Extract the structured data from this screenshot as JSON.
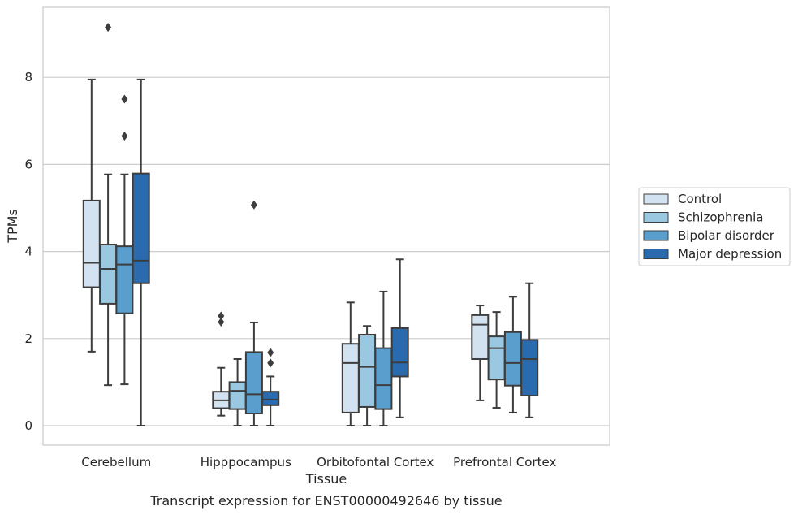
{
  "chart_data": {
    "type": "boxplot",
    "caption": "Transcript expression for ENST00000492646 by tissue",
    "xlabel": "Tissue",
    "ylabel": "TPMs",
    "ylim": [
      -0.45,
      9.6
    ],
    "yticks": [
      0,
      2,
      4,
      6,
      8
    ],
    "grid": true,
    "legend_position": "right",
    "categories": [
      "Cerebellum",
      "Hipppocampus",
      "Orbitofontal Cortex",
      "Prefrontal Cortex"
    ],
    "series": [
      {
        "name": "Control",
        "color": "#d2e2f1",
        "boxes": [
          {
            "whisker_low": 1.7,
            "q1": 3.18,
            "median": 3.74,
            "q3": 5.17,
            "whisker_high": 7.95,
            "outliers": []
          },
          {
            "whisker_low": 0.23,
            "q1": 0.4,
            "median": 0.58,
            "q3": 0.78,
            "whisker_high": 1.33,
            "outliers": [
              2.38,
              2.52
            ]
          },
          {
            "whisker_low": 0.0,
            "q1": 0.3,
            "median": 1.44,
            "q3": 1.88,
            "whisker_high": 2.83,
            "outliers": []
          },
          {
            "whisker_low": 0.58,
            "q1": 1.53,
            "median": 2.32,
            "q3": 2.54,
            "whisker_high": 2.76,
            "outliers": []
          }
        ]
      },
      {
        "name": "Schizophrenia",
        "color": "#9ac8e0",
        "boxes": [
          {
            "whisker_low": 0.93,
            "q1": 2.8,
            "median": 3.6,
            "q3": 4.16,
            "whisker_high": 5.77,
            "outliers": [
              9.15
            ]
          },
          {
            "whisker_low": 0.0,
            "q1": 0.38,
            "median": 0.8,
            "q3": 1.0,
            "whisker_high": 1.53,
            "outliers": []
          },
          {
            "whisker_low": 0.0,
            "q1": 0.43,
            "median": 1.35,
            "q3": 2.09,
            "whisker_high": 2.29,
            "outliers": []
          },
          {
            "whisker_low": 0.41,
            "q1": 1.06,
            "median": 1.78,
            "q3": 2.05,
            "whisker_high": 2.61,
            "outliers": []
          }
        ]
      },
      {
        "name": "Bipolar disorder",
        "color": "#5a9ecd",
        "boxes": [
          {
            "whisker_low": 0.95,
            "q1": 2.58,
            "median": 3.7,
            "q3": 4.12,
            "whisker_high": 5.77,
            "outliers": [
              6.65,
              7.5
            ]
          },
          {
            "whisker_low": 0.0,
            "q1": 0.28,
            "median": 0.72,
            "q3": 1.69,
            "whisker_high": 2.37,
            "outliers": [
              5.07
            ]
          },
          {
            "whisker_low": 0.0,
            "q1": 0.38,
            "median": 0.93,
            "q3": 1.78,
            "whisker_high": 3.08,
            "outliers": []
          },
          {
            "whisker_low": 0.3,
            "q1": 0.92,
            "median": 1.44,
            "q3": 2.15,
            "whisker_high": 2.96,
            "outliers": []
          }
        ]
      },
      {
        "name": "Major depression",
        "color": "#2a6aae",
        "boxes": [
          {
            "whisker_low": 0.0,
            "q1": 3.27,
            "median": 3.79,
            "q3": 5.79,
            "whisker_high": 7.95,
            "outliers": []
          },
          {
            "whisker_low": 0.0,
            "q1": 0.47,
            "median": 0.6,
            "q3": 0.78,
            "whisker_high": 1.13,
            "outliers": [
              1.44,
              1.68
            ]
          },
          {
            "whisker_low": 0.19,
            "q1": 1.13,
            "median": 1.45,
            "q3": 2.24,
            "whisker_high": 3.82,
            "outliers": []
          },
          {
            "whisker_low": 0.19,
            "q1": 0.69,
            "median": 1.53,
            "q3": 1.97,
            "whisker_high": 3.27,
            "outliers": []
          }
        ]
      }
    ]
  }
}
